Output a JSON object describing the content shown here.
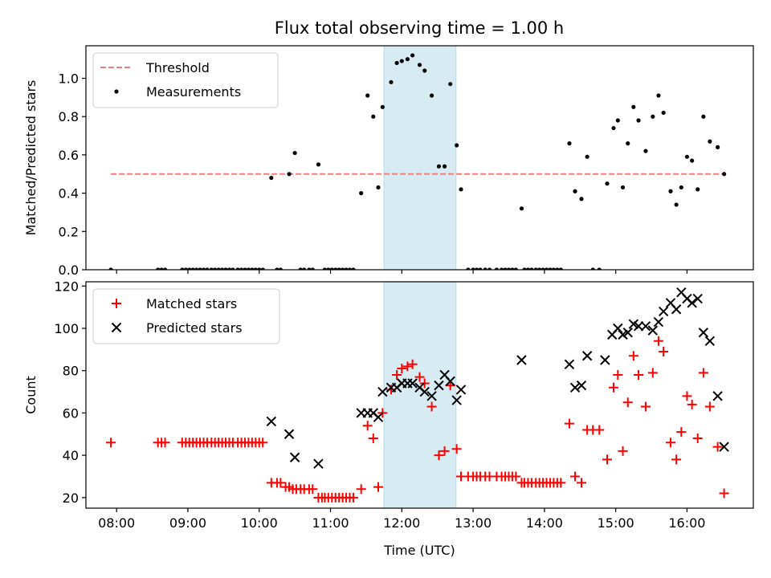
{
  "figure": {
    "title": "Flux total observing time = 1.00 h"
  },
  "chart_data": [
    {
      "type": "scatter",
      "panel": "top",
      "ylabel": "Matched/Predicted stars",
      "ylim": [
        0,
        1.17
      ],
      "yticks": [
        0.0,
        0.2,
        0.4,
        0.6,
        0.8,
        1.0
      ],
      "ytick_labels": [
        "0.0",
        "0.2",
        "0.4",
        "0.6",
        "0.8",
        "1.0"
      ],
      "xlim": [
        7.57,
        16.93
      ],
      "legend": {
        "position": "upper-left",
        "entries": [
          "Threshold",
          "Measurements"
        ]
      },
      "shaded_span": [
        11.75,
        12.76
      ],
      "threshold": {
        "name": "Threshold",
        "value": 0.5,
        "x_range": [
          7.92,
          16.53
        ],
        "color": "#f08080",
        "style": "dashed"
      },
      "series": [
        {
          "name": "Measurements",
          "color": "#000000",
          "marker": "dot",
          "x": [
            7.92,
            8.58,
            8.63,
            8.68,
            8.92,
            8.97,
            9.02,
            9.07,
            9.12,
            9.17,
            9.22,
            9.27,
            9.33,
            9.38,
            9.43,
            9.48,
            9.53,
            9.58,
            9.63,
            9.7,
            9.75,
            9.8,
            9.85,
            9.9,
            9.95,
            10.0,
            10.05,
            10.17,
            10.25,
            10.3,
            10.42,
            10.5,
            10.58,
            10.63,
            10.7,
            10.75,
            10.83,
            10.92,
            10.97,
            11.02,
            11.07,
            11.12,
            11.17,
            11.22,
            11.27,
            11.32,
            11.43,
            11.52,
            11.6,
            11.67,
            11.73,
            11.85,
            11.93,
            12.0,
            12.08,
            12.15,
            12.25,
            12.32,
            12.42,
            12.52,
            12.6,
            12.68,
            12.77,
            12.83,
            12.93,
            13.0,
            13.05,
            13.1,
            13.17,
            13.23,
            13.33,
            13.4,
            13.45,
            13.5,
            13.55,
            13.6,
            13.68,
            13.72,
            13.77,
            13.82,
            13.88,
            13.93,
            13.98,
            14.03,
            14.08,
            14.13,
            14.18,
            14.23,
            14.35,
            14.43,
            14.52,
            14.6,
            14.68,
            14.77,
            14.88,
            14.97,
            15.03,
            15.1,
            15.17,
            15.25,
            15.32,
            15.42,
            15.52,
            15.6,
            15.67,
            15.77,
            15.85,
            15.92,
            16.0,
            16.07,
            16.15,
            16.23,
            16.32,
            16.43,
            16.52
          ],
          "y": [
            0,
            0,
            0,
            0,
            0,
            0,
            0,
            0,
            0,
            0,
            0,
            0,
            0,
            0,
            0,
            0,
            0,
            0,
            0,
            0,
            0,
            0,
            0,
            0,
            0,
            0,
            0,
            0.48,
            0,
            0,
            0.5,
            0.61,
            0,
            0,
            0,
            0,
            0.55,
            0,
            0,
            0,
            0,
            0,
            0,
            0,
            0,
            0,
            0.4,
            0.91,
            0.8,
            0.43,
            0.85,
            0.98,
            1.08,
            1.09,
            1.1,
            1.12,
            1.07,
            1.04,
            0.91,
            0.54,
            0.54,
            0.97,
            0.65,
            0.42,
            0,
            0,
            0,
            0,
            0,
            0,
            0,
            0,
            0,
            0,
            0,
            0,
            0.32,
            0,
            0,
            0,
            0,
            0,
            0,
            0,
            0,
            0,
            0,
            0,
            0.66,
            0.41,
            0.37,
            0.59,
            0,
            0,
            0.45,
            0.74,
            0.78,
            0.43,
            0.66,
            0.85,
            0.78,
            0.62,
            0.8,
            0.91,
            0.82,
            0.41,
            0.34,
            0.43,
            0.59,
            0.57,
            0.42,
            0.8,
            0.67,
            0.64,
            0.5
          ]
        }
      ]
    },
    {
      "type": "scatter",
      "panel": "bottom",
      "xlabel": "Time (UTC)",
      "ylabel": "Count",
      "ylim": [
        15,
        122
      ],
      "yticks": [
        20,
        40,
        60,
        80,
        100,
        120
      ],
      "ytick_labels": [
        "20",
        "40",
        "60",
        "80",
        "100",
        "120"
      ],
      "xlim": [
        7.57,
        16.93
      ],
      "xticks": [
        8,
        9,
        10,
        11,
        12,
        13,
        14,
        15,
        16
      ],
      "xtick_labels": [
        "08:00",
        "09:00",
        "10:00",
        "11:00",
        "12:00",
        "13:00",
        "14:00",
        "15:00",
        "16:00"
      ],
      "legend": {
        "position": "upper-left",
        "entries": [
          "Matched stars",
          "Predicted stars"
        ]
      },
      "shaded_span": [
        11.75,
        12.76
      ],
      "series": [
        {
          "name": "Matched stars",
          "color": "#ff0000",
          "marker": "plus",
          "x": [
            7.92,
            8.58,
            8.63,
            8.68,
            8.92,
            8.97,
            9.02,
            9.07,
            9.12,
            9.17,
            9.22,
            9.27,
            9.33,
            9.38,
            9.43,
            9.48,
            9.53,
            9.58,
            9.63,
            9.7,
            9.75,
            9.8,
            9.85,
            9.9,
            9.95,
            10.0,
            10.05,
            10.17,
            10.25,
            10.3,
            10.37,
            10.42,
            10.47,
            10.52,
            10.58,
            10.63,
            10.7,
            10.75,
            10.83,
            10.88,
            10.92,
            10.97,
            11.02,
            11.07,
            11.12,
            11.17,
            11.22,
            11.27,
            11.32,
            11.43,
            11.52,
            11.6,
            11.67,
            11.73,
            11.85,
            11.93,
            12.0,
            12.08,
            12.15,
            12.25,
            12.32,
            12.42,
            12.52,
            12.6,
            12.68,
            12.77,
            12.83,
            12.93,
            13.0,
            13.05,
            13.1,
            13.17,
            13.23,
            13.33,
            13.4,
            13.45,
            13.5,
            13.55,
            13.6,
            13.68,
            13.72,
            13.77,
            13.82,
            13.88,
            13.93,
            13.98,
            14.03,
            14.08,
            14.13,
            14.18,
            14.23,
            14.35,
            14.43,
            14.52,
            14.6,
            14.68,
            14.77,
            14.88,
            14.97,
            15.03,
            15.1,
            15.17,
            15.25,
            15.32,
            15.42,
            15.52,
            15.6,
            15.67,
            15.77,
            15.85,
            15.92,
            16.0,
            16.07,
            16.15,
            16.23,
            16.32,
            16.43,
            16.52
          ],
          "y": [
            46,
            46,
            46,
            46,
            46,
            46,
            46,
            46,
            46,
            46,
            46,
            46,
            46,
            46,
            46,
            46,
            46,
            46,
            46,
            46,
            46,
            46,
            46,
            46,
            46,
            46,
            46,
            27,
            27,
            27,
            25,
            25,
            24,
            24,
            24,
            24,
            24,
            24,
            20,
            20,
            20,
            20,
            20,
            20,
            20,
            20,
            20,
            20,
            20,
            24,
            54,
            48,
            25,
            60,
            71,
            78,
            81,
            82,
            83,
            77,
            74,
            63,
            40,
            42,
            73,
            43,
            30,
            30,
            30,
            30,
            30,
            30,
            30,
            30,
            30,
            30,
            30,
            30,
            30,
            27,
            27,
            27,
            27,
            27,
            27,
            27,
            27,
            27,
            27,
            27,
            27,
            55,
            30,
            27,
            52,
            52,
            52,
            38,
            72,
            78,
            42,
            65,
            87,
            78,
            63,
            79,
            94,
            89,
            46,
            38,
            51,
            68,
            64,
            48,
            79,
            63,
            44,
            22
          ]
        },
        {
          "name": "Predicted stars",
          "color": "#000000",
          "marker": "x",
          "x": [
            10.17,
            10.42,
            10.5,
            10.83,
            11.43,
            11.52,
            11.6,
            11.67,
            11.73,
            11.85,
            11.93,
            12.0,
            12.08,
            12.15,
            12.25,
            12.32,
            12.42,
            12.52,
            12.6,
            12.68,
            12.77,
            12.83,
            13.68,
            14.35,
            14.43,
            14.52,
            14.6,
            14.85,
            14.95,
            15.03,
            15.1,
            15.17,
            15.25,
            15.32,
            15.42,
            15.52,
            15.6,
            15.67,
            15.77,
            15.85,
            15.92,
            16.0,
            16.07,
            16.15,
            16.23,
            16.32,
            16.43,
            16.52
          ],
          "y": [
            56,
            50,
            39,
            36,
            60,
            60,
            60,
            58,
            70,
            72,
            72,
            74,
            74,
            74,
            72,
            70,
            68,
            73,
            78,
            75,
            66,
            71,
            85,
            83,
            72,
            73,
            87,
            85,
            97,
            100,
            97,
            98,
            102,
            101,
            101,
            99,
            103,
            108,
            112,
            109,
            117,
            114,
            112,
            114,
            98,
            94,
            68,
            44
          ]
        }
      ]
    }
  ]
}
